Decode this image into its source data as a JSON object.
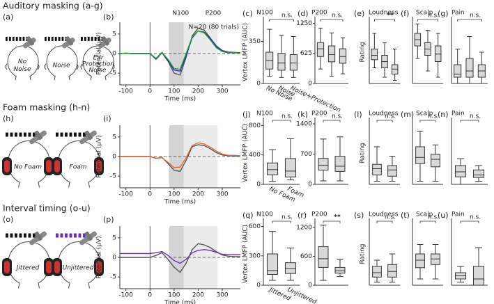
{
  "figure": {
    "rows": [
      {
        "title": "Auditory masking (a-g)",
        "diagram_label": "(a)",
        "heads": [
          {
            "lines": [
              "No",
              "Noise"
            ],
            "color": "#555555"
          },
          {
            "lines": [
              "Noise"
            ],
            "color": "#1f2fd0"
          },
          {
            "small_lines": [
              "Ear",
              "Protection"
            ],
            "lines": [
              "Noise"
            ],
            "color": "#2a9d2a"
          }
        ]
      },
      {
        "title": "Foam masking (h-n)",
        "diagram_label": "(h)",
        "heads": [
          {
            "lines": [
              "No Foam"
            ],
            "color": "#555555"
          },
          {
            "lines": [
              "Foam"
            ],
            "color": "#e8622a"
          }
        ]
      },
      {
        "title": "Interval timing (o-u)",
        "diagram_label": "(o)",
        "heads": [
          {
            "lines": [
              "Jittered"
            ],
            "color": "#555555"
          },
          {
            "lines": [
              "Unjittered"
            ],
            "color": "#6b2bbf"
          }
        ]
      }
    ]
  },
  "chart_data": [
    {
      "type": "line",
      "panel": "(b)",
      "xlabel": "Time (ms)",
      "ylabel": "Potential (µV)",
      "xlim": [
        -125,
        375
      ],
      "ylim": [
        -8,
        8
      ],
      "xticks": [
        -100,
        0,
        100,
        200,
        300
      ],
      "yticks": [
        -5,
        0,
        5
      ],
      "windows": [
        {
          "label": "N100",
          "range": [
            80,
            140
          ]
        },
        {
          "label": "P200",
          "range": [
            140,
            280
          ]
        }
      ],
      "annotation": "N=20 (80 trials)",
      "x": [
        -125,
        -100,
        -75,
        -50,
        -25,
        0,
        25,
        50,
        75,
        100,
        125,
        150,
        175,
        200,
        225,
        250,
        275,
        300,
        325,
        350,
        375
      ],
      "series": [
        {
          "color": "#555555",
          "values": [
            0,
            0.1,
            0,
            0,
            0,
            0,
            -1.5,
            0.2,
            -2,
            -5,
            -5.5,
            -1,
            4.5,
            6.5,
            6,
            4,
            2,
            0.8,
            0.4,
            0.3,
            0.2
          ]
        },
        {
          "color": "#1f2fd0",
          "values": [
            0,
            0.1,
            0,
            0,
            0,
            0,
            -1.3,
            0.3,
            -1.8,
            -4.2,
            -4.5,
            -0.5,
            4,
            5.8,
            5.5,
            3.8,
            1.8,
            0.6,
            0.3,
            0.2,
            0.2
          ]
        },
        {
          "color": "#2a9d2a",
          "values": [
            0,
            0.1,
            0,
            0,
            0,
            0,
            -1.2,
            0.3,
            -1.5,
            -3.8,
            -4,
            0,
            4.2,
            5.8,
            5.3,
            3.5,
            1.5,
            0.5,
            0.2,
            0.2,
            0.1
          ]
        }
      ]
    },
    {
      "type": "box",
      "panel": "(c)",
      "title": "N100",
      "ylabel": "Vertex LMFP (AUC)",
      "ylim": [
        0,
        520
      ],
      "yticks": [
        0,
        350
      ],
      "significance": "n.s.",
      "categories": [
        "No Noise",
        "Noise",
        "Noise+Protection"
      ],
      "category_colors": [
        "#555555",
        "#1f2fd0",
        "#2a9d2a"
      ],
      "fill": "#d9d9d9",
      "boxes": [
        {
          "min": 60,
          "q1": 120,
          "median": 190,
          "q3": 260,
          "max": 450
        },
        {
          "min": 50,
          "q1": 110,
          "median": 170,
          "q3": 250,
          "max": 400
        },
        {
          "min": 50,
          "q1": 110,
          "median": 170,
          "q3": 240,
          "max": 390
        }
      ]
    },
    {
      "type": "box",
      "panel": "(d)",
      "title": "P200",
      "ylim": [
        0,
        1300
      ],
      "yticks": [
        0,
        625,
        1250
      ],
      "significance": "n.s.",
      "fill": "#d9d9d9",
      "boxes": [
        {
          "min": 300,
          "q1": 560,
          "median": 720,
          "q3": 850,
          "max": 1150
        },
        {
          "min": 150,
          "q1": 450,
          "median": 600,
          "q3": 780,
          "max": 1050
        },
        {
          "min": 200,
          "q1": 420,
          "median": 560,
          "q3": 720,
          "max": 950
        }
      ]
    },
    {
      "type": "box",
      "panel": "(e)",
      "title": "Loudness",
      "ylabel": "Rating",
      "ylim": [
        0,
        10
      ],
      "significance": "**",
      "fill": "#d9d9d9",
      "boxes": [
        {
          "min": 2.5,
          "q1": 3.8,
          "median": 4.5,
          "q3": 5.5,
          "max": 8
        },
        {
          "min": 1,
          "q1": 2.5,
          "median": 3.5,
          "q3": 4.5,
          "max": 6.5
        },
        {
          "min": 0.5,
          "q1": 1.5,
          "median": 2.3,
          "q3": 3,
          "max": 5.5
        }
      ]
    },
    {
      "type": "box",
      "panel": "(f)",
      "title": "Scalp",
      "ylim": [
        0,
        10
      ],
      "significance": "n.s.",
      "fill": "#d9d9d9",
      "boxes": [
        {
          "min": 4,
          "q1": 6,
          "median": 7,
          "q3": 8,
          "max": 9.5
        },
        {
          "min": 2,
          "q1": 4.5,
          "median": 5.5,
          "q3": 6.5,
          "max": 8.5
        },
        {
          "min": 1,
          "q1": 3.5,
          "median": 4.7,
          "q3": 6,
          "max": 8
        }
      ]
    },
    {
      "type": "box",
      "panel": "(g)",
      "title": "Pain",
      "ylim": [
        0,
        10
      ],
      "significance": "n.s.",
      "fill": "#d9d9d9",
      "boxes": [
        {
          "min": 0,
          "q1": 1,
          "median": 1.5,
          "q3": 3,
          "max": 5.5
        },
        {
          "min": 0,
          "q1": 1,
          "median": 2,
          "q3": 4,
          "max": 7.5
        },
        {
          "min": 0,
          "q1": 1,
          "median": 2,
          "q3": 3,
          "max": 5
        }
      ]
    },
    {
      "type": "line",
      "panel": "(i)",
      "xlabel": "Time (ms)",
      "ylabel": "Potential (µV)",
      "xlim": [
        -125,
        375
      ],
      "ylim": [
        -8,
        8
      ],
      "xticks": [
        -100,
        0,
        100,
        200,
        300
      ],
      "yticks": [
        -5,
        0,
        5
      ],
      "windows": [
        {
          "range": [
            80,
            140
          ]
        },
        {
          "range": [
            140,
            280
          ]
        }
      ],
      "x": [
        -125,
        -100,
        -75,
        -50,
        -25,
        0,
        25,
        50,
        75,
        100,
        125,
        150,
        175,
        200,
        225,
        250,
        275,
        300,
        325,
        350,
        375
      ],
      "series": [
        {
          "color": "#555555",
          "values": [
            0,
            0,
            0,
            0,
            0,
            0,
            -0.5,
            -0.2,
            -1.8,
            -3.5,
            -3.8,
            -1,
            2.5,
            3,
            2.8,
            2,
            1,
            0.4,
            0.2,
            0.1,
            0.1
          ]
        },
        {
          "color": "#e8622a",
          "values": [
            0,
            0,
            0,
            0,
            0,
            0,
            -0.4,
            -0.3,
            -1.5,
            -2.8,
            -2.7,
            -0.3,
            2.8,
            3.5,
            3.2,
            2.4,
            1.4,
            0.6,
            0.3,
            0.3,
            0.2
          ]
        }
      ]
    },
    {
      "type": "box",
      "panel": "(j)",
      "title": "N100",
      "ylabel": "Vertex LMFP (AUC)",
      "ylim": [
        0,
        850
      ],
      "yticks": [
        0,
        400,
        800
      ],
      "significance": "n.s.",
      "categories": [
        "No Foam",
        "Foam"
      ],
      "category_colors": [
        "#555555",
        "#e8622a"
      ],
      "fill": "#d9d9d9",
      "boxes": [
        {
          "min": 40,
          "q1": 130,
          "median": 200,
          "q3": 290,
          "max": 470
        },
        {
          "min": 60,
          "q1": 100,
          "median": 180,
          "q3": 350,
          "max": 620
        }
      ]
    },
    {
      "type": "box",
      "panel": "(k)",
      "title": "P200",
      "ylim": [
        0,
        1450
      ],
      "yticks": [
        0,
        700,
        1400
      ],
      "significance": "n.s.",
      "fill": "#d9d9d9",
      "boxes": [
        {
          "min": 80,
          "q1": 330,
          "median": 440,
          "q3": 600,
          "max": 1050
        },
        {
          "min": 80,
          "q1": 300,
          "median": 420,
          "q3": 650,
          "max": 1100
        }
      ]
    },
    {
      "type": "box",
      "panel": "(l)",
      "title": "Loudness",
      "ylabel": "Rating",
      "ylim": [
        0,
        10
      ],
      "significance": "n.s.",
      "fill": "#d9d9d9",
      "boxes": [
        {
          "min": 0.5,
          "q1": 1.5,
          "median": 2.5,
          "q3": 3.2,
          "max": 6
        },
        {
          "min": 0.5,
          "q1": 1.3,
          "median": 2.3,
          "q3": 3,
          "max": 4.5
        }
      ]
    },
    {
      "type": "box",
      "panel": "(m)",
      "title": "Scalp",
      "ylim": [
        0,
        10
      ],
      "significance": "n.s.",
      "fill": "#d9d9d9",
      "boxes": [
        {
          "min": 0.5,
          "q1": 3.3,
          "median": 4.3,
          "q3": 6,
          "max": 8.5
        },
        {
          "min": 0.5,
          "q1": 2.8,
          "median": 4,
          "q3": 4.8,
          "max": 6.3
        }
      ]
    },
    {
      "type": "box",
      "panel": "(n)",
      "title": "Pain",
      "ylim": [
        0,
        10
      ],
      "significance": "n.s.",
      "fill": "#d9d9d9",
      "boxes": [
        {
          "min": 0,
          "q1": 1.2,
          "median": 2,
          "q3": 3,
          "max": 4.1
        },
        {
          "min": 0.5,
          "q1": 1.1,
          "median": 1.5,
          "q3": 2.3,
          "max": 3
        }
      ]
    },
    {
      "type": "line",
      "panel": "(p)",
      "xlabel": "Time (ms)",
      "ylabel": "Potential (µV)",
      "xlim": [
        -125,
        375
      ],
      "ylim": [
        -8,
        8
      ],
      "xticks": [
        -100,
        0,
        100,
        200,
        300
      ],
      "yticks": [
        -5,
        0,
        5
      ],
      "windows": [
        {
          "range": [
            80,
            140
          ]
        },
        {
          "range": [
            140,
            280
          ]
        }
      ],
      "x": [
        -125,
        -100,
        -75,
        -50,
        -25,
        0,
        25,
        50,
        75,
        100,
        125,
        150,
        175,
        200,
        225,
        250,
        275,
        300,
        325,
        350,
        375
      ],
      "series": [
        {
          "color": "#555555",
          "values": [
            0,
            0,
            0,
            0,
            0,
            0,
            0.5,
            1.2,
            -0.5,
            -2.5,
            -3.8,
            -1.5,
            2,
            3.5,
            3.2,
            2.5,
            1.5,
            0.6,
            0.3,
            0.2,
            0.2
          ]
        },
        {
          "color": "#6b2bbf",
          "values": [
            1,
            1,
            1,
            1,
            1,
            1,
            1.2,
            1.5,
            0.5,
            -0.8,
            -1.5,
            -0.5,
            1.2,
            1.8,
            2,
            1.8,
            1.3,
            0.8,
            0.7,
            0.7,
            0.7
          ]
        }
      ]
    },
    {
      "type": "box",
      "panel": "(q)",
      "title": "N100",
      "ylabel": "Vertex LMFP (AUC)",
      "ylim": [
        0,
        640
      ],
      "yticks": [
        0,
        300,
        600
      ],
      "significance": "n.s.",
      "categories": [
        "Jittered",
        "Unjittered"
      ],
      "category_colors": [
        "#555555",
        "#6b2bbf"
      ],
      "fill": "#d9d9d9",
      "boxes": [
        {
          "min": 50,
          "q1": 110,
          "median": 150,
          "q3": 320,
          "max": 550
        },
        {
          "min": 50,
          "q1": 120,
          "median": 170,
          "q3": 230,
          "max": 380
        }
      ]
    },
    {
      "type": "box",
      "panel": "(r)",
      "title": "P200",
      "ylim": [
        0,
        1300
      ],
      "yticks": [
        0,
        600,
        1200
      ],
      "significance": "**",
      "fill": "#d9d9d9",
      "boxes": [
        {
          "min": 100,
          "q1": 370,
          "median": 550,
          "q3": 800,
          "max": 1250
        },
        {
          "min": 180,
          "q1": 250,
          "median": 300,
          "q3": 370,
          "max": 540
        }
      ]
    },
    {
      "type": "box",
      "panel": "(s)",
      "title": "Loudness",
      "ylabel": "Rating",
      "ylim": [
        0,
        10
      ],
      "significance": "n.s.",
      "fill": "#d9d9d9",
      "boxes": [
        {
          "min": 0.5,
          "q1": 1.3,
          "median": 2,
          "q3": 3,
          "max": 4
        },
        {
          "min": 0.5,
          "q1": 1.3,
          "median": 2.2,
          "q3": 3.3,
          "max": 5
        }
      ]
    },
    {
      "type": "box",
      "panel": "(t)",
      "title": "Scalp",
      "ylim": [
        0,
        10
      ],
      "significance": "n.s.",
      "fill": "#d9d9d9",
      "boxes": [
        {
          "min": 1,
          "q1": 2.8,
          "median": 4,
          "q3": 5,
          "max": 6.5
        },
        {
          "min": 1,
          "q1": 3.3,
          "median": 4.2,
          "q3": 5,
          "max": 6.5
        }
      ]
    },
    {
      "type": "box",
      "panel": "(u)",
      "title": "Pain",
      "ylim": [
        0,
        10
      ],
      "significance": "n.s.",
      "fill": "#d9d9d9",
      "boxes": [
        {
          "min": 0.5,
          "q1": 1,
          "median": 1.5,
          "q3": 2,
          "max": 3
        },
        {
          "min": 0,
          "q1": 0,
          "median": 1,
          "q3": 3,
          "max": 6
        }
      ]
    }
  ]
}
